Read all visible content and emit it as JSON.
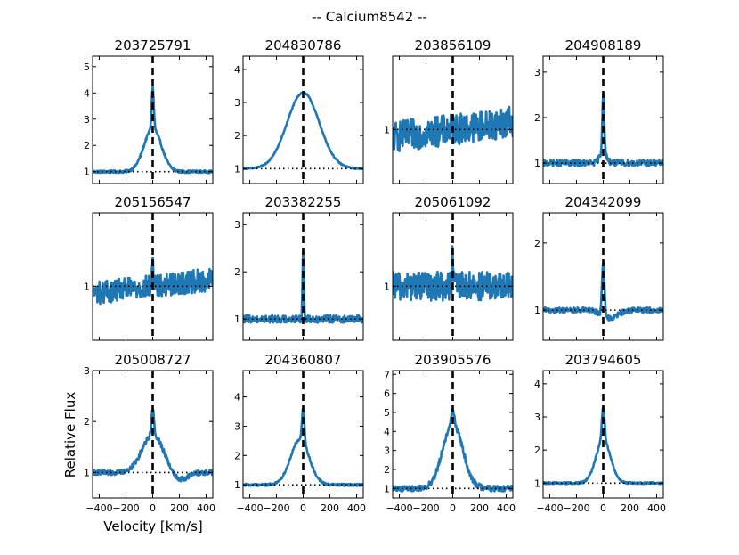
{
  "chart_data": {
    "type": "line",
    "title": "-- Calcium8542 --",
    "xlabel": "Velocity [km/s]",
    "ylabel": "Relative Flux",
    "xlim": [
      -450,
      450
    ],
    "x_ticks": [
      -400,
      -200,
      0,
      200,
      400
    ],
    "x_tick_labels": [
      "−400",
      "−200",
      "0",
      "200",
      "400"
    ],
    "line_color": "#1f77b4",
    "panels": [
      {
        "name": "203725791",
        "ylim": [
          0.55,
          5.4
        ],
        "yticks": [
          1,
          2,
          3,
          4,
          5
        ],
        "profile": {
          "base": 1.0,
          "broad_amp": 1.65,
          "broad_sigma": 65,
          "narrow_amp": 1.55,
          "narrow_sigma": 8,
          "noise": 0.05
        }
      },
      {
        "name": "204830786",
        "ylim": [
          0.55,
          4.4
        ],
        "yticks": [
          1,
          2,
          3,
          4
        ],
        "profile": {
          "base": 1.0,
          "broad_amp": 2.3,
          "broad_sigma": 120,
          "narrow_amp": 0.0,
          "narrow_sigma": 8,
          "noise": 0.02
        }
      },
      {
        "name": "203856109",
        "ylim": [
          0.3,
          1.95
        ],
        "yticks": [
          1
        ],
        "profile": {
          "base": 1.0,
          "broad_amp": 0.0,
          "broad_sigma": 60,
          "narrow_amp": 0.0,
          "narrow_sigma": 8,
          "noise": 0.2,
          "slope": 0.00022
        }
      },
      {
        "name": "204908189",
        "ylim": [
          0.55,
          3.35
        ],
        "yticks": [
          1,
          2,
          3
        ],
        "profile": {
          "base": 1.0,
          "broad_amp": 0.25,
          "broad_sigma": 25,
          "narrow_amp": 1.25,
          "narrow_sigma": 7,
          "noise": 0.07
        }
      },
      {
        "name": "205156547",
        "ylim": [
          0.3,
          1.95
        ],
        "yticks": [
          1
        ],
        "profile": {
          "base": 1.0,
          "broad_amp": 0.0,
          "broad_sigma": 60,
          "narrow_amp": 0.35,
          "narrow_sigma": 5,
          "noise": 0.15,
          "slope": 0.0002
        }
      },
      {
        "name": "203382255",
        "ylim": [
          0.55,
          3.25
        ],
        "yticks": [
          1,
          2,
          3
        ],
        "profile": {
          "base": 1.0,
          "broad_amp": 0.0,
          "broad_sigma": 60,
          "narrow_amp": 1.45,
          "narrow_sigma": 5,
          "noise": 0.08
        }
      },
      {
        "name": "205061092",
        "ylim": [
          0.3,
          1.95
        ],
        "yticks": [
          1
        ],
        "profile": {
          "base": 1.0,
          "broad_amp": 0.0,
          "broad_sigma": 60,
          "narrow_amp": 0.4,
          "narrow_sigma": 5,
          "noise": 0.19
        }
      },
      {
        "name": "204342099",
        "ylim": [
          0.55,
          2.45
        ],
        "yticks": [
          1,
          2
        ],
        "profile": {
          "base": 1.0,
          "broad_amp": 0.0,
          "broad_sigma": 60,
          "narrow_amp": 0.8,
          "narrow_sigma": 9,
          "noise": 0.04,
          "dip": -0.12,
          "dip_center": 50,
          "dip_sigma": 60
        }
      },
      {
        "name": "205008727",
        "ylim": [
          0.5,
          3.0
        ],
        "yticks": [
          1,
          2,
          3
        ],
        "profile": {
          "base": 1.0,
          "broad_amp": 0.75,
          "broad_sigma": 80,
          "narrow_amp": 0.5,
          "narrow_sigma": 9,
          "noise": 0.05,
          "dip": -0.15,
          "dip_center": 200,
          "dip_sigma": 60
        }
      },
      {
        "name": "204360807",
        "ylim": [
          0.55,
          4.9
        ],
        "yticks": [
          1,
          2,
          3,
          4
        ],
        "profile": {
          "base": 1.0,
          "broad_amp": 1.55,
          "broad_sigma": 70,
          "broad_center": -25,
          "narrow_amp": 1.15,
          "narrow_sigma": 9,
          "noise": 0.04
        }
      },
      {
        "name": "203905576",
        "ylim": [
          0.5,
          7.2
        ],
        "yticks": [
          1,
          2,
          3,
          4,
          5,
          6,
          7
        ],
        "profile": {
          "base": 1.0,
          "broad_amp": 3.4,
          "broad_sigma": 75,
          "narrow_amp": 0.8,
          "narrow_sigma": 10,
          "noise": 0.15
        }
      },
      {
        "name": "203794605",
        "ylim": [
          0.55,
          4.4
        ],
        "yticks": [
          1,
          2,
          3,
          4
        ],
        "profile": {
          "base": 1.0,
          "broad_amp": 1.3,
          "broad_sigma": 55,
          "narrow_amp": 1.0,
          "narrow_sigma": 10,
          "noise": 0.03
        }
      }
    ]
  }
}
